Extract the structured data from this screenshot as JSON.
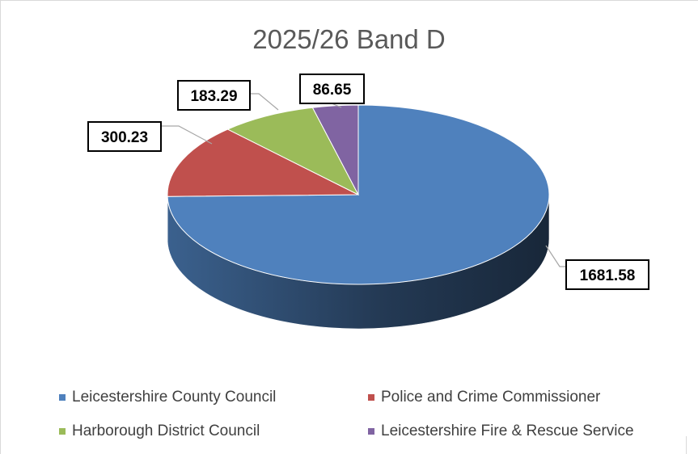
{
  "chart_data": {
    "type": "pie",
    "title": "2025/26 Band D",
    "three_d": true,
    "legend_position": "bottom",
    "slices": [
      {
        "name": "Leicestershire County Council",
        "value": 1681.58,
        "label": "1681.58",
        "color": "#4f81bd"
      },
      {
        "name": "Police and Crime Commissioner",
        "value": 300.23,
        "label": "300.23",
        "color": "#c0504d"
      },
      {
        "name": "Harborough District Council",
        "value": 183.29,
        "label": "183.29",
        "color": "#9bbb59"
      },
      {
        "name": "Leicestershire Fire & Rescue Service",
        "value": 86.65,
        "label": "86.65",
        "color": "#8064a2"
      }
    ]
  }
}
